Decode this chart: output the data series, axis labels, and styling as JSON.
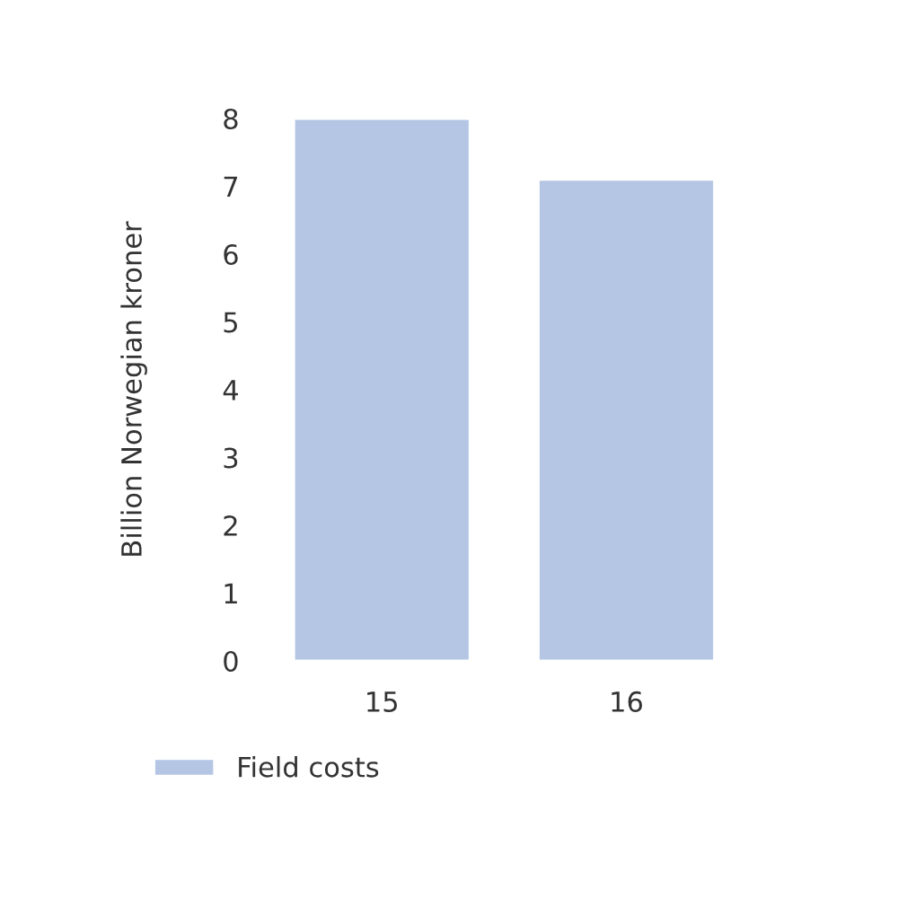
{
  "chart_data": {
    "type": "bar",
    "ylabel": "Billion Norwegian kroner",
    "categories": [
      "15",
      "16"
    ],
    "series": [
      {
        "name": "Field costs",
        "color": "#b4c6e4",
        "values": [
          8.0,
          7.1
        ]
      }
    ],
    "ylim": [
      0,
      8
    ],
    "yticks": [
      0,
      1,
      2,
      3,
      4,
      5,
      6,
      7,
      8
    ],
    "grid": false,
    "legend": "bottom"
  }
}
